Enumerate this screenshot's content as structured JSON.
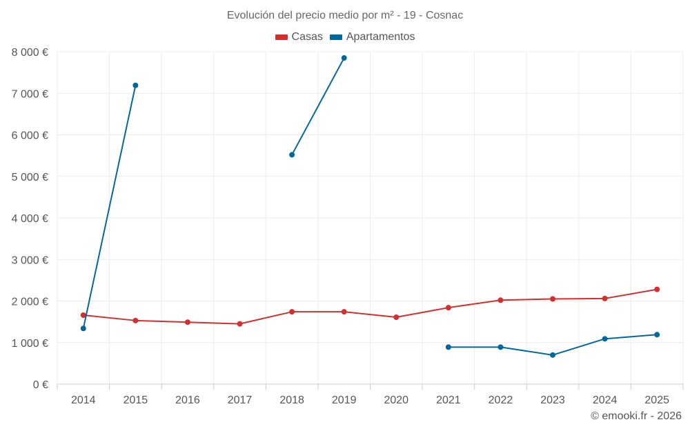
{
  "chart_data": {
    "type": "line",
    "title": "Evolución del precio medio por m² - 19 - Cosnac",
    "categories": [
      "2014",
      "2015",
      "2016",
      "2017",
      "2018",
      "2019",
      "2020",
      "2021",
      "2022",
      "2023",
      "2024",
      "2025"
    ],
    "series": [
      {
        "name": "Casas",
        "color": "#d32f2f",
        "values": [
          1660,
          1530,
          1490,
          1450,
          1740,
          1740,
          1610,
          1840,
          2020,
          2050,
          2060,
          2280
        ]
      },
      {
        "name": "Apartamentos",
        "color": "#01689b",
        "values": [
          1340,
          7190,
          null,
          null,
          5520,
          7850,
          null,
          890,
          890,
          700,
          1090,
          1190
        ]
      }
    ],
    "ylim": [
      0,
      8000
    ],
    "yticks": [
      0,
      1000,
      2000,
      3000,
      4000,
      5000,
      6000,
      7000,
      8000
    ],
    "ytick_labels": [
      "0 €",
      "1 000 €",
      "2 000 €",
      "3 000 €",
      "4 000 €",
      "5 000 €",
      "6 000 €",
      "7 000 €",
      "8 000 €"
    ],
    "xlabel": "",
    "ylabel": "",
    "grid": true,
    "legend_position": "top-center"
  },
  "credit": "© emooki.fr - 2026"
}
